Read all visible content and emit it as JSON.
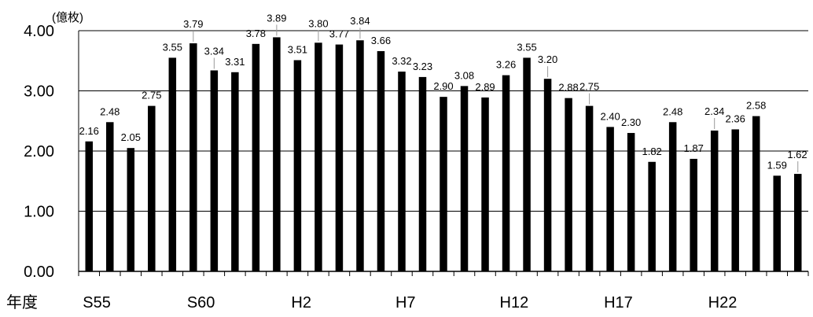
{
  "chart_data": {
    "type": "bar",
    "unit_label": "(億枚)",
    "xlabel": "年度",
    "ylabel": "",
    "ylim": [
      0,
      4
    ],
    "yticks": [
      "0.00",
      "1.00",
      "2.00",
      "3.00",
      "4.00"
    ],
    "xtick_labels": [
      {
        "index": 0,
        "label": "S55"
      },
      {
        "index": 5,
        "label": "S60"
      },
      {
        "index": 10,
        "label": "H2"
      },
      {
        "index": 15,
        "label": "H7"
      },
      {
        "index": 20,
        "label": "H12"
      },
      {
        "index": 25,
        "label": "H17"
      },
      {
        "index": 30,
        "label": "H22"
      }
    ],
    "values": [
      2.16,
      2.48,
      2.05,
      2.75,
      3.55,
      3.79,
      3.34,
      3.31,
      3.78,
      3.89,
      3.51,
      3.8,
      3.77,
      3.84,
      3.66,
      3.32,
      3.23,
      2.9,
      3.08,
      2.89,
      3.26,
      3.55,
      3.2,
      2.88,
      2.75,
      2.4,
      2.3,
      1.82,
      2.48,
      1.87,
      2.34,
      2.36,
      2.58,
      1.59,
      1.62
    ],
    "labels": [
      "2.16",
      "2.48",
      "2.05",
      "2.75",
      "3.55",
      "3.79",
      "3.34",
      "3.31",
      "3.78",
      "3.89",
      "3.51",
      "3.80",
      "3.77",
      "3.84",
      "3.66",
      "3.32",
      "3.23",
      "2.90",
      "3.08",
      "2.89",
      "3.26",
      "3.55",
      "3.20",
      "2.88",
      "2.75",
      "2.40",
      "2.30",
      "1.82",
      "2.48",
      "1.87",
      "2.34",
      "2.36",
      "2.58",
      "1.59",
      "1.62"
    ],
    "grid": true,
    "bar_color": "#000000"
  }
}
